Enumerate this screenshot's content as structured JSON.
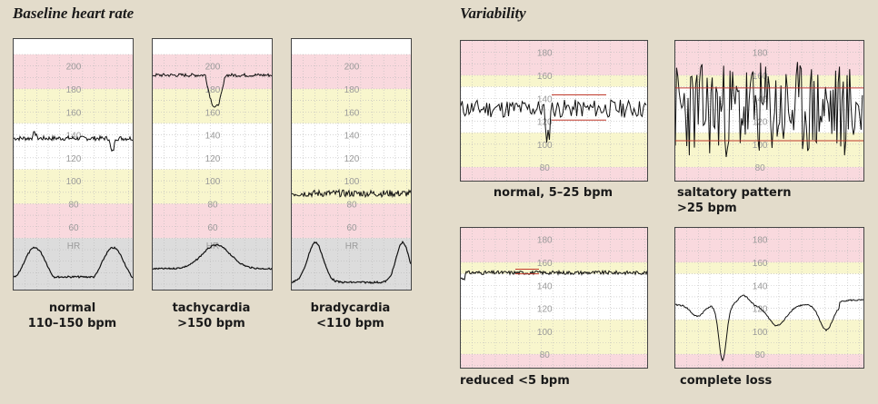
{
  "left_section": {
    "title": "Baseline heart rate"
  },
  "right_section": {
    "title": "Variability"
  },
  "panels": {
    "normal_baseline": {
      "labels": [
        "200",
        "180",
        "160",
        "140",
        "120",
        "100",
        "80",
        "60",
        "HR"
      ],
      "caption": [
        "normal",
        "110–150 bpm"
      ]
    },
    "tachycardia": {
      "labels": [
        "200",
        "180",
        "160",
        "140",
        "120",
        "100",
        "80",
        "60",
        "HR"
      ],
      "caption": [
        "tachycardia",
        ">150 bpm"
      ]
    },
    "bradycardia": {
      "labels": [
        "200",
        "180",
        "160",
        "140",
        "120",
        "100",
        "80",
        "60",
        "HR"
      ],
      "caption": [
        "bradycardia",
        "<110 bpm"
      ]
    },
    "var_normal": {
      "labels": [
        "180",
        "160",
        "140",
        "120",
        "100",
        "80"
      ],
      "caption": [
        "normal, 5–25 bpm"
      ]
    },
    "var_saltatory": {
      "labels": [
        "180",
        "160",
        "140",
        "120",
        "100",
        "80"
      ],
      "caption": [
        "saltatory pattern",
        ">25 bpm"
      ]
    },
    "var_reduced": {
      "labels": [
        "180",
        "160",
        "140",
        "120",
        "100",
        "80"
      ],
      "caption": [
        "reduced <5 bpm"
      ]
    },
    "var_loss": {
      "labels": [
        "180",
        "160",
        "140",
        "120",
        "100",
        "80"
      ],
      "caption": [
        "complete loss"
      ]
    }
  },
  "colors": {
    "background": "#e3dccb",
    "pink_band": "#f9d9de",
    "yellow_band": "#f8f6cd",
    "white_band": "#ffffff",
    "gray_band": "#dcdcdc",
    "trace": "#111111",
    "range_marker": "#c0392b"
  }
}
